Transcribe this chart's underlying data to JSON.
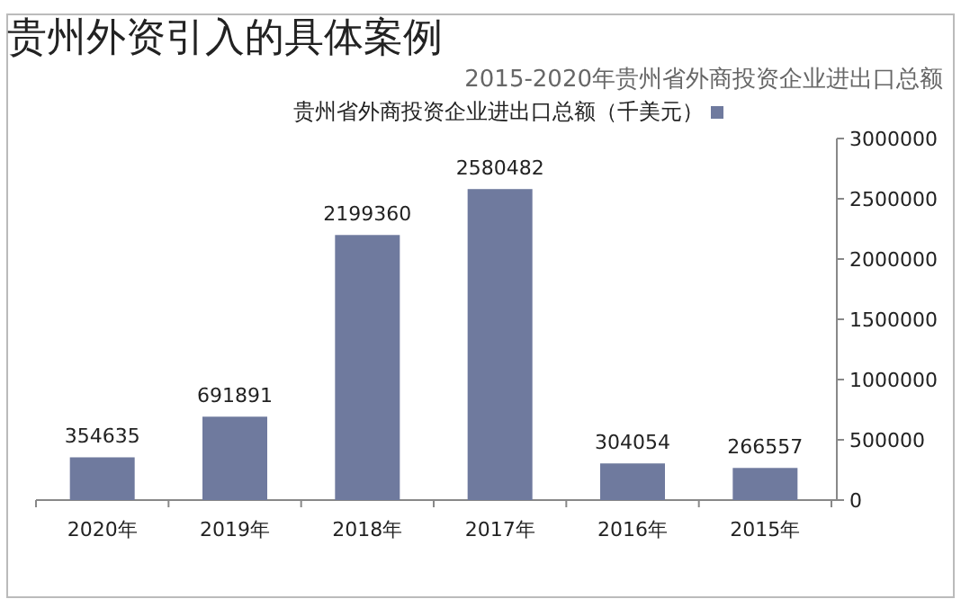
{
  "chart_data": {
    "type": "bar",
    "title": "贵州外资引入的具体案例",
    "subtitle": "2015-2020年贵州省外商投资企业进出口总额",
    "categories": [
      "2020年",
      "2019年",
      "2018年",
      "2017年",
      "2016年",
      "2015年"
    ],
    "series": [
      {
        "name": "贵州省外商投资企业进出口总额（千美元）",
        "color": "#6f7a9e",
        "values": [
          354635,
          691891,
          2199360,
          2580482,
          304054,
          266557
        ]
      }
    ],
    "ylim": [
      0,
      3000000
    ],
    "yticks": [
      0,
      500000,
      1000000,
      1500000,
      2000000,
      2500000,
      3000000
    ],
    "data_labels": true,
    "legend": "top",
    "grid": false
  }
}
